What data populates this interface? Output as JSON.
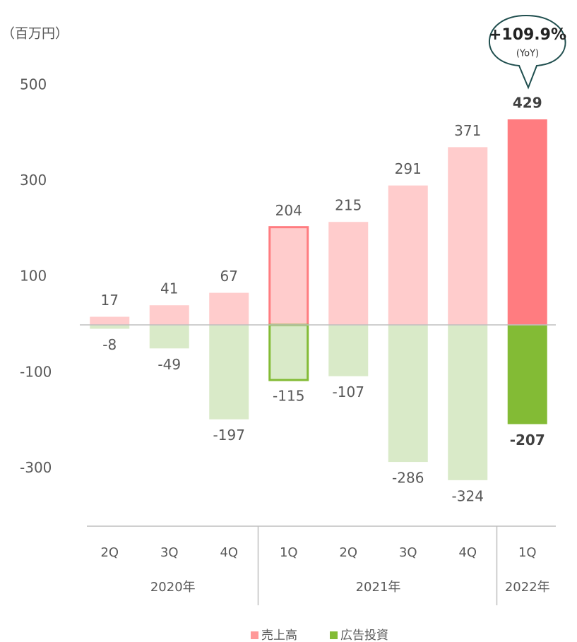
{
  "chart_data": {
    "type": "bar",
    "unit_label": "（百万円）",
    "categories": [
      "2Q",
      "3Q",
      "4Q",
      "1Q",
      "2Q",
      "3Q",
      "4Q",
      "1Q"
    ],
    "groups": [
      {
        "label": "2020年",
        "count": 3
      },
      {
        "label": "2021年",
        "count": 4
      },
      {
        "label": "2022年",
        "count": 1
      }
    ],
    "series": [
      {
        "name": "売上高",
        "color": "#ffcccc",
        "highlight_color": "#ff7c80",
        "legend_color": "#ff9999",
        "values": [
          17,
          41,
          67,
          204,
          215,
          291,
          371,
          429
        ]
      },
      {
        "name": "広告投資",
        "color": "#d9eac8",
        "highlight_color": "#83bb35",
        "legend_color": "#83bb35",
        "values": [
          -8,
          -49,
          -197,
          -115,
          -107,
          -286,
          -324,
          -207
        ]
      }
    ],
    "highlight_index": 7,
    "outline_index": 3,
    "annotation": {
      "text": "+109.9%",
      "subtext": "(YoY)"
    },
    "ylim": [
      -420,
      600
    ],
    "yticks": [
      -300,
      -100,
      100,
      300,
      500
    ]
  }
}
